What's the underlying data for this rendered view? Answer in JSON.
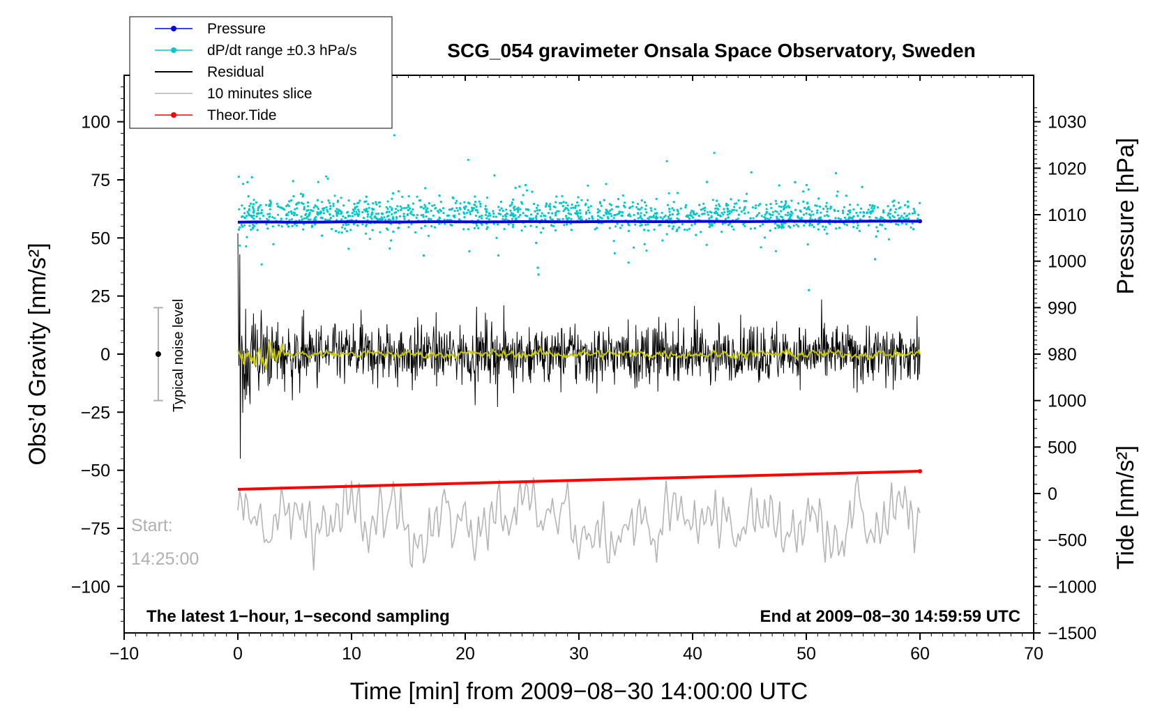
{
  "chart_data": {
    "type": "line",
    "title": "SCG_054 gravimeter Onsala Space Observatory, Sweden",
    "xlabel": "Time [min] from 2009−08−30 14:00:00 UTC",
    "ylabel_left": "Obs’d Gravity [nm/s²]",
    "ylabel_right_top": "Pressure [hPa]",
    "ylabel_right_bottom": "Tide [nm/s²]",
    "xlim": [
      -10,
      70
    ],
    "ylim_left": [
      -120,
      120
    ],
    "x_ticks": [
      -10,
      0,
      10,
      20,
      30,
      40,
      50,
      60,
      70
    ],
    "x_tick_labels": [
      "−10",
      "0",
      "10",
      "20",
      "30",
      "40",
      "50",
      "60",
      "70"
    ],
    "y_left_ticks": [
      100,
      75,
      50,
      25,
      0,
      -25,
      -50,
      -75,
      -100
    ],
    "y_left_tick_labels": [
      "100",
      "75",
      "50",
      "25",
      "0",
      "−25",
      "−50",
      "−75",
      "−100"
    ],
    "pressure_axis": {
      "ticks": [
        1030,
        1020,
        1010,
        1000,
        990,
        980
      ],
      "tick_labels": [
        "1030",
        "1020",
        "1010",
        "1000",
        "990",
        "980"
      ],
      "left_value_at_1030": 100,
      "left_units_per_hPa": 2
    },
    "tide_axis": {
      "ticks": [
        1000,
        500,
        0,
        -500,
        -1000,
        -1500
      ],
      "tick_labels": [
        "1000",
        "500",
        "0",
        "−500",
        "−1000",
        "−1500"
      ],
      "left_value_at_0": -60,
      "left_units_per_unit": 0.04
    },
    "legend": [
      {
        "label": "Pressure",
        "color": "#0000dd",
        "marker": true
      },
      {
        "label": "dP/dt range ±0.3 hPa/s",
        "color": "#00c8c8",
        "marker": true
      },
      {
        "label": "Residual",
        "color": "#000000",
        "marker": false
      },
      {
        "label": "10 minutes slice",
        "color": "#b4b4b4",
        "marker": false
      },
      {
        "label": "Theor.Tide",
        "color": "#ff0000",
        "marker": true
      }
    ],
    "series": [
      {
        "name": "Pressure",
        "unit": "hPa",
        "x_range": [
          0,
          60
        ],
        "start": 1008.4,
        "end": 1008.6,
        "color": "#0000dd"
      },
      {
        "name": "dP/dt range ±0.3 hPa/s",
        "x_range": [
          0,
          60
        ],
        "center": 60,
        "spread": 6,
        "outlier_min": 22,
        "outlier_max": 97,
        "color": "#00c8c8"
      },
      {
        "name": "Residual",
        "x_range": [
          0,
          60
        ],
        "center": 0,
        "typical_amplitude": 12,
        "early_transient_max": 52,
        "early_transient_min": -45,
        "color": "#000000"
      },
      {
        "name": "Residual smoothed",
        "x_range": [
          0,
          60
        ],
        "center": 0,
        "typical_amplitude": 1.5,
        "color": "#c8c800"
      },
      {
        "name": "Theor.Tide",
        "unit": "nm/s²",
        "x_range": [
          0,
          60
        ],
        "start": 45,
        "end": 240,
        "color": "#ff0000"
      },
      {
        "name": "10 minutes slice",
        "x_range": [
          0,
          60
        ],
        "center": -72,
        "min": -98,
        "max": -51,
        "color": "#b4b4b4"
      }
    ],
    "noise_level": {
      "label": "Typical noise level",
      "x": -7,
      "center": 0,
      "low": -20,
      "high": 20
    },
    "annotations": {
      "start_label": "Start:",
      "start_time": "14:25:00",
      "sampling_note": "The latest 1−hour, 1−second sampling",
      "end_note": "End at 2009−08−30 14:59:59 UTC"
    }
  }
}
